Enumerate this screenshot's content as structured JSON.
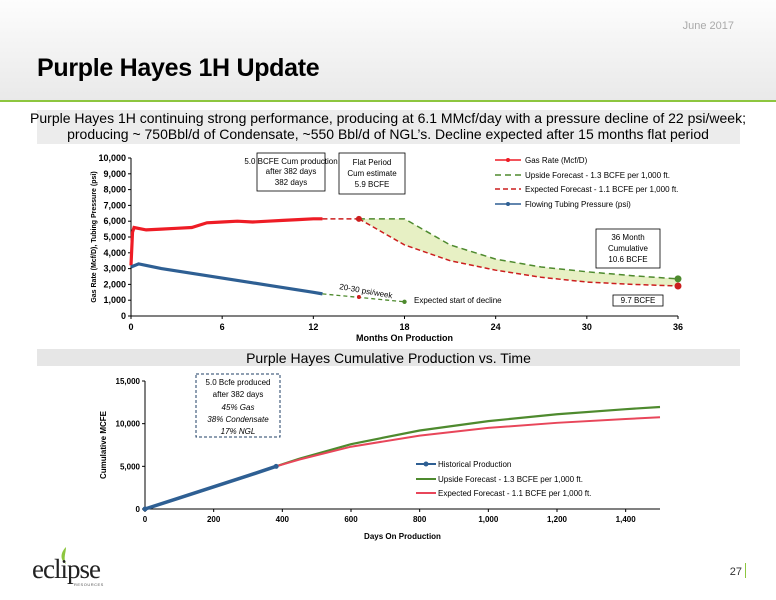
{
  "header": {
    "date": "June 2017",
    "title": "Purple Hayes 1H Update",
    "subtitle_line1": "Purple Hayes 1H continuing strong performance, producing at 6.1 MMcf/day with a pressure decline of 22 psi/week;",
    "subtitle_line2": "producing ~ 750Bbl/d of Condensate, ~550 Bbl/d of NGL’s.  Decline expected after 15 months flat period"
  },
  "section2_title": "Purple Hayes Cumulative Production vs. Time",
  "footer": {
    "page_number": "27",
    "logo_name": "eclipse",
    "logo_subtext": "RESOURCES"
  },
  "colors": {
    "gas_rate": "#ee1c25",
    "upside": "#4e8a2e",
    "expected": "#cc1e1e",
    "pressure": "#2e5f93",
    "band_fill": "#e7f0c4",
    "accent_green": "#8dc63f"
  },
  "chart_data": [
    {
      "type": "line",
      "xlabel": "Months On Production",
      "ylabel": "Gas Rate (Mcf/D), Tubing Pressure (psi)",
      "xlim": [
        0,
        36
      ],
      "ylim": [
        0,
        10000
      ],
      "xticks": [
        "0",
        "6",
        "12",
        "18",
        "24",
        "30",
        "36"
      ],
      "yticks": [
        "0",
        "1,000",
        "2,000",
        "3,000",
        "4,000",
        "5,000",
        "6,000",
        "7,000",
        "8,000",
        "9,000",
        "10,000"
      ],
      "legend": [
        "Gas Rate (Mcf/D)",
        "Upside Forecast - 1.3 BCFE per 1,000 ft.",
        "Expected Forecast - 1.1 BCFE per 1,000 ft.",
        "Flowing Tubing Pressure (psi)"
      ],
      "legend_position": "top-right",
      "series": [
        {
          "name": "Gas Rate (Mcf/D)",
          "x": [
            0,
            0.1,
            0.2,
            1,
            2,
            3,
            4,
            5,
            6,
            7,
            8,
            9,
            10,
            11,
            12,
            12.6
          ],
          "y": [
            3200,
            5300,
            5600,
            5450,
            5500,
            5550,
            5600,
            5900,
            5950,
            6000,
            5950,
            6000,
            6050,
            6100,
            6150,
            6150
          ]
        },
        {
          "name": "Gas Rate Flat Period",
          "x": [
            12.6,
            15
          ],
          "y": [
            6150,
            6150
          ]
        },
        {
          "name": "Upside Forecast - 1.3 BCFE per 1,000 ft.",
          "x": [
            15,
            18,
            21,
            24,
            27,
            30,
            33,
            36
          ],
          "y": [
            6150,
            6150,
            4500,
            3600,
            3100,
            2800,
            2550,
            2350
          ]
        },
        {
          "name": "Expected Forecast - 1.1 BCFE per 1,000 ft.",
          "x": [
            15,
            18,
            21,
            24,
            27,
            30,
            33,
            36
          ],
          "y": [
            6150,
            4500,
            3500,
            2900,
            2450,
            2150,
            2000,
            1900
          ]
        },
        {
          "name": "Flowing Tubing Pressure (psi)",
          "x": [
            0,
            0.5,
            1,
            2,
            3,
            4,
            5,
            6,
            7,
            8,
            9,
            10,
            11,
            12,
            12.6
          ],
          "y": [
            3100,
            3300,
            3200,
            3000,
            2850,
            2700,
            2550,
            2400,
            2250,
            2100,
            1950,
            1800,
            1650,
            1500,
            1400
          ]
        },
        {
          "name": "Pressure Forecast",
          "x": [
            12.6,
            18
          ],
          "y": [
            1400,
            900
          ]
        }
      ],
      "annotations": {
        "cum": "5.0 BCFE Cum production  after 382 days",
        "flat1": "Flat Period",
        "flat2": "Cum estimate",
        "flat3": "5.9 BCFE",
        "psi": "20-30 psi/week",
        "decline": "Expected start of decline",
        "m36_1": "36 Month",
        "m36_2": "Cumulative",
        "m36_3": "10.6 BCFE",
        "m36_low": "9.7 BCFE"
      }
    },
    {
      "type": "line",
      "xlabel": "Days  On Production",
      "ylabel": "Cumulative  MCFE",
      "xlim": [
        0,
        1500
      ],
      "ylim": [
        0,
        15000
      ],
      "xticks": [
        "0",
        "200",
        "400",
        "600",
        "800",
        "1,000",
        "1,200",
        "1,400"
      ],
      "yticks": [
        "0",
        "5,000",
        "10,000",
        "15,000"
      ],
      "legend_position": "center-right",
      "series": [
        {
          "name": "Historical Production",
          "x": [
            0,
            100,
            200,
            300,
            382
          ],
          "y": [
            0,
            1300,
            2600,
            3900,
            5000
          ]
        },
        {
          "name": "Upside Forecast - 1.3 BCFE per 1,000 ft.",
          "x": [
            382,
            450,
            600,
            800,
            1000,
            1200,
            1400,
            1500
          ],
          "y": [
            5000,
            5900,
            7600,
            9200,
            10300,
            11100,
            11700,
            11950
          ]
        },
        {
          "name": "Expected Forecast - 1.1 BCFE per 1,000 ft.",
          "x": [
            382,
            450,
            600,
            800,
            1000,
            1200,
            1400,
            1500
          ],
          "y": [
            5000,
            5800,
            7300,
            8600,
            9500,
            10100,
            10550,
            10750
          ]
        }
      ],
      "annotation_lines": [
        "5.0 Bcfe produced",
        "after 382 days",
        "45% Gas",
        "38% Condensate",
        "17% NGL"
      ]
    }
  ]
}
